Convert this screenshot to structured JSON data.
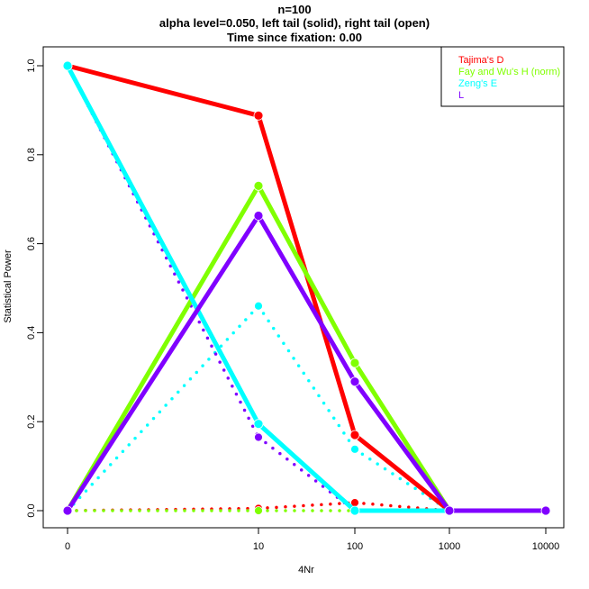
{
  "chart_data": {
    "type": "line",
    "title_lines": [
      "n=100",
      "alpha level=0.050, left tail (solid), right tail (open)",
      "Time since fixation: 0.00"
    ],
    "xlabel": "4Nr",
    "ylabel": "Statistical Power",
    "x_categories": [
      "0",
      "10",
      "100",
      "1000",
      "10000"
    ],
    "y_ticks": [
      "0.0",
      "0.2",
      "0.4",
      "0.6",
      "0.8",
      "1.0"
    ],
    "ylim": [
      0,
      1
    ],
    "grid": false,
    "legend_position": "top-right",
    "series": [
      {
        "name": "Tajima's D",
        "color": "#ff0000",
        "left_tail": [
          1.0,
          0.888,
          0.17,
          0.0,
          0.0
        ],
        "right_tail": [
          0.0,
          0.005,
          0.018,
          0.0,
          0.0
        ]
      },
      {
        "name": "Fay and Wu's H (norm)",
        "color": "#80ff00",
        "left_tail": [
          0.0,
          0.73,
          0.332,
          0.0,
          0.0
        ],
        "right_tail": [
          0.0,
          0.0,
          0.0,
          0.0,
          0.0
        ]
      },
      {
        "name": "Zeng's E",
        "color": "#00ffff",
        "left_tail": [
          1.0,
          0.195,
          0.0,
          0.0,
          0.0
        ],
        "right_tail": [
          0.0,
          0.46,
          0.138,
          0.0,
          0.0
        ]
      },
      {
        "name": "L",
        "color": "#8000ff",
        "left_tail": [
          0.0,
          0.663,
          0.29,
          0.0,
          0.0
        ],
        "right_tail": [
          1.0,
          0.165,
          0.0,
          0.0,
          0.0
        ]
      }
    ]
  }
}
